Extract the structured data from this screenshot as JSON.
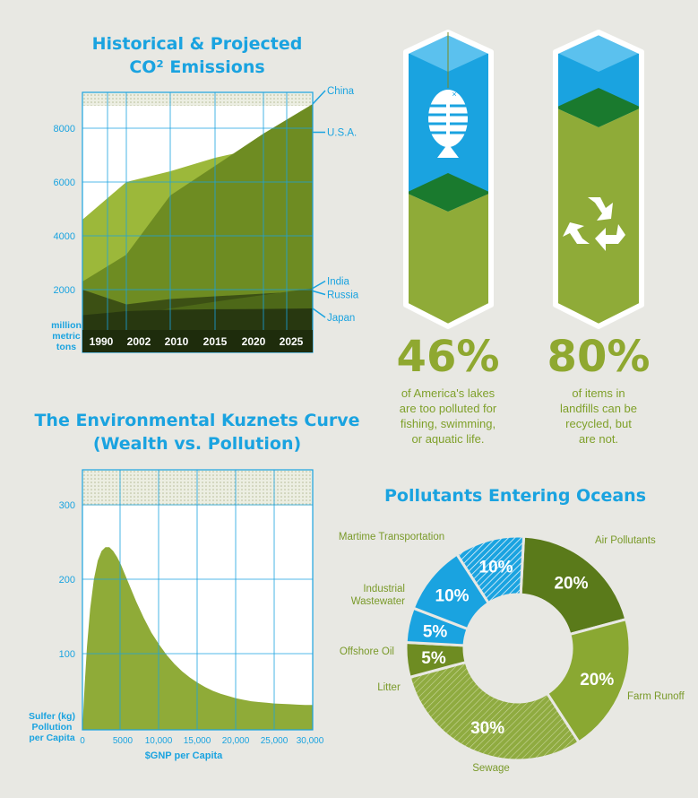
{
  "co2": {
    "title_line1": "Historical & Projected",
    "title_line2": "CO² Emissions"
  },
  "kuznets": {
    "title_line1": "The Environmental Kuznets Curve",
    "title_line2": "(Wealth vs. Pollution)"
  },
  "stats": [
    {
      "value": "46%",
      "l1": "of America's lakes",
      "l2": "are too polluted for",
      "l3": "fishing, swimming,",
      "l4": "or aquatic life."
    },
    {
      "value": "80%",
      "l1": "of items in",
      "l2": "landfills can be",
      "l3": "recycled, but",
      "l4": "are not."
    }
  ],
  "oceans": {
    "title": "Pollutants Entering Oceans"
  },
  "chart_data": [
    {
      "type": "area",
      "title": "Historical & Projected CO² Emissions",
      "ylabel": "million metric tons",
      "x": [
        "1990",
        "2002",
        "2010",
        "2015",
        "2020",
        "2025"
      ],
      "ylim": [
        0,
        9000
      ],
      "yticks": [
        2000,
        4000,
        6000,
        8000
      ],
      "series": [
        {
          "name": "China",
          "values": [
            2300,
            3300,
            5500,
            6600,
            7800,
            8900
          ],
          "color": "#6e8c22"
        },
        {
          "name": "U.S.A.",
          "values": [
            4600,
            6000,
            6400,
            6900,
            7300,
            7850
          ],
          "color": "#9cb83a"
        },
        {
          "name": "India",
          "values": [
            700,
            1000,
            1300,
            1550,
            1800,
            2050
          ],
          "color": "#4d6818"
        },
        {
          "name": "Russia",
          "values": [
            2000,
            1450,
            1650,
            1750,
            1850,
            1950
          ],
          "color": "#3c5014"
        },
        {
          "name": "Japan",
          "values": [
            1050,
            1200,
            1250,
            1270,
            1280,
            1300
          ],
          "color": "#283810"
        }
      ]
    },
    {
      "type": "area",
      "title": "The Environmental Kuznets Curve (Wealth vs. Pollution)",
      "xlabel": "$GNP per Capita",
      "ylabel": "Sulfer (kg) Pollution per Capita",
      "xlim": [
        0,
        30000
      ],
      "ylim": [
        0,
        340
      ],
      "xticks": [
        0,
        5000,
        10000,
        15000,
        20000,
        25000,
        30000
      ],
      "xticklabels": [
        "0",
        "5000",
        "10,000",
        "15,000",
        "20,000",
        "25,000",
        "30,000"
      ],
      "yticks": [
        100,
        200,
        300
      ],
      "x": [
        0,
        300,
        600,
        1000,
        1500,
        2000,
        2500,
        3000,
        3500,
        4000,
        4500,
        5000,
        6000,
        7000,
        8000,
        9000,
        10000,
        11000,
        12000,
        13000,
        14000,
        15000,
        16000,
        17000,
        18000,
        19000,
        20000,
        21000,
        22000,
        23000,
        24000,
        25000,
        26000,
        27000,
        28000,
        29000,
        30000
      ],
      "y": [
        0,
        60,
        110,
        160,
        200,
        225,
        238,
        243,
        243,
        238,
        230,
        220,
        195,
        170,
        148,
        128,
        112,
        98,
        86,
        76,
        68,
        61,
        55,
        50,
        46,
        43,
        40,
        38,
        36,
        35,
        34,
        33,
        32.5,
        32,
        31.5,
        31,
        31
      ]
    },
    {
      "type": "pie",
      "title": "Pollutants Entering Oceans",
      "labels": [
        "Air Pollutants",
        "Farm Runoff",
        "Sewage",
        "Litter",
        "Offshore Oil",
        "Industrial Wastewater",
        "Martime Transportation"
      ],
      "values": [
        20,
        20,
        30,
        5,
        5,
        10,
        10
      ],
      "display": [
        "20%",
        "20%",
        "30%",
        "5%",
        "5%",
        "10%",
        "10%"
      ],
      "colors": [
        "#5a7a1a",
        "#8aa832",
        "#c0cf8a",
        "#6e8c22",
        "#1aa3e0",
        "#1aa3e0",
        "#9bd2ef"
      ]
    }
  ]
}
